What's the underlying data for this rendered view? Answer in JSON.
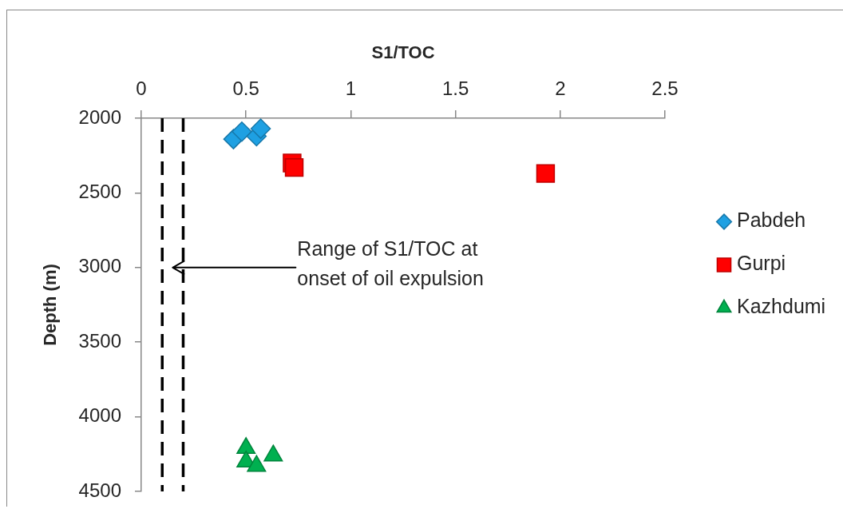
{
  "chart_data": {
    "type": "scatter",
    "xlabel": "S1/TOC",
    "ylabel": "Depth (m)",
    "xlim": [
      0,
      2.5
    ],
    "xticks": [
      0,
      0.5,
      1,
      1.5,
      2,
      2.5
    ],
    "ylim": [
      4500,
      2000
    ],
    "yticks": [
      2000,
      2500,
      3000,
      3500,
      4000,
      4500
    ],
    "legend": "right",
    "series": [
      {
        "name": "Pabdeh",
        "color": "#1ea0e2",
        "marker": "diamond",
        "x": [
          0.44,
          0.48,
          0.55,
          0.57
        ],
        "values": [
          2140,
          2090,
          2120,
          2070
        ]
      },
      {
        "name": "Gurpi",
        "color": "#ff0000",
        "marker": "square",
        "x": [
          0.72,
          0.73,
          1.93
        ],
        "values": [
          2300,
          2330,
          2370
        ]
      },
      {
        "name": "Kazhdumi",
        "color": "#00b050",
        "marker": "triangle",
        "x": [
          0.5,
          0.5,
          0.55,
          0.63
        ],
        "values": [
          4210,
          4300,
          4330,
          4260
        ]
      }
    ],
    "ref_lines": [
      {
        "axis": "x",
        "value": 0.1,
        "color": "#000000",
        "line_style": "dashed"
      },
      {
        "axis": "x",
        "value": 0.2,
        "color": "#000000",
        "line_style": "dashed"
      }
    ],
    "annotations": [
      "Range of S1/TOC at onset of oil expulsion"
    ]
  }
}
